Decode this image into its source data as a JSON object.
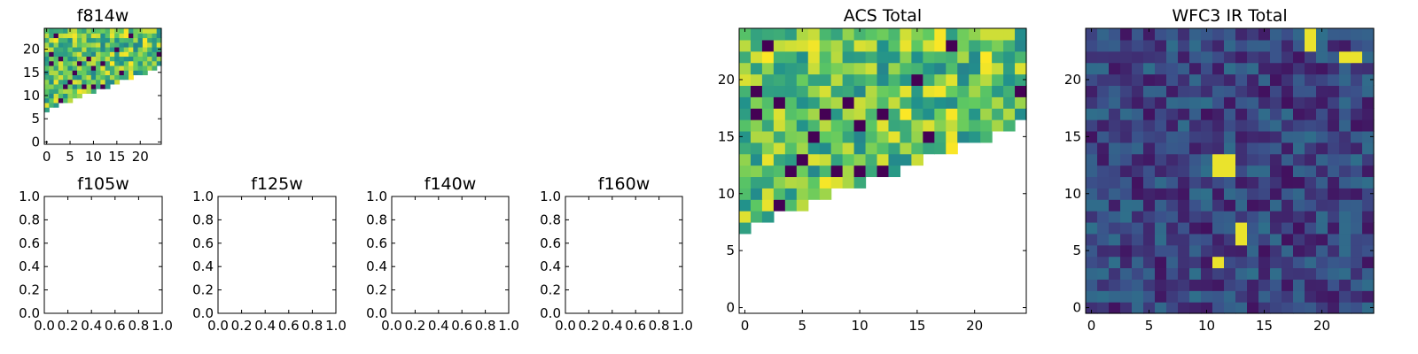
{
  "chart_data": [
    {
      "type": "heatmap",
      "title": "f814w",
      "x_ticks": [
        0,
        5,
        10,
        15,
        20
      ],
      "y_ticks": [
        0,
        5,
        10,
        15,
        20
      ],
      "xlim": [
        -0.5,
        24.5
      ],
      "ylim": [
        -0.5,
        24.5
      ],
      "grid_size": 25,
      "colormap": "viridis",
      "seed": 814,
      "coverage": "upper-left triangular footprint (empty below y = 7 + 0.38x)"
    },
    {
      "type": "empty",
      "title": "f105w",
      "x_ticks": [
        "0.0",
        "0.2",
        "0.4",
        "0.6",
        "0.8",
        "1.0"
      ],
      "y_ticks": [
        "0.0",
        "0.2",
        "0.4",
        "0.6",
        "0.8",
        "1.0"
      ],
      "xlim": [
        0,
        1
      ],
      "ylim": [
        0,
        1
      ]
    },
    {
      "type": "empty",
      "title": "f125w",
      "x_ticks": [
        "0.0",
        "0.2",
        "0.4",
        "0.6",
        "0.8",
        "1.0"
      ],
      "y_ticks": [
        "0.0",
        "0.2",
        "0.4",
        "0.6",
        "0.8",
        "1.0"
      ],
      "xlim": [
        0,
        1
      ],
      "ylim": [
        0,
        1
      ]
    },
    {
      "type": "empty",
      "title": "f140w",
      "x_ticks": [
        "0.0",
        "0.2",
        "0.4",
        "0.6",
        "0.8",
        "1.0"
      ],
      "y_ticks": [
        "0.0",
        "0.2",
        "0.4",
        "0.6",
        "0.8",
        "1.0"
      ],
      "xlim": [
        0,
        1
      ],
      "ylim": [
        0,
        1
      ]
    },
    {
      "type": "empty",
      "title": "f160w",
      "x_ticks": [
        "0.0",
        "0.2",
        "0.4",
        "0.6",
        "0.8",
        "1.0"
      ],
      "y_ticks": [
        "0.0",
        "0.2",
        "0.4",
        "0.6",
        "0.8",
        "1.0"
      ],
      "xlim": [
        0,
        1
      ],
      "ylim": [
        0,
        1
      ]
    },
    {
      "type": "heatmap",
      "title": "ACS Total",
      "x_ticks": [
        0,
        5,
        10,
        15,
        20
      ],
      "y_ticks": [
        0,
        5,
        10,
        15,
        20
      ],
      "xlim": [
        -0.5,
        24.5
      ],
      "ylim": [
        -0.5,
        24.5
      ],
      "grid_size": 25,
      "colormap": "viridis",
      "seed": 814,
      "coverage": "upper-left triangular footprint (empty below y = 7 + 0.38x)"
    },
    {
      "type": "heatmap",
      "title": "WFC3 IR Total",
      "x_ticks": [
        0,
        5,
        10,
        15,
        20
      ],
      "y_ticks": [
        0,
        5,
        10,
        15,
        20
      ],
      "xlim": [
        -0.5,
        24.5
      ],
      "ylim": [
        -0.5,
        24.5
      ],
      "grid_size": 25,
      "colormap": "viridis",
      "seed": 160,
      "coverage": "full",
      "bright_pixels": [
        [
          19,
          24
        ],
        [
          19,
          23
        ],
        [
          23,
          22
        ],
        [
          22,
          22
        ],
        [
          11,
          13
        ],
        [
          12,
          13
        ],
        [
          11,
          12
        ],
        [
          12,
          12
        ],
        [
          13,
          7
        ],
        [
          13,
          6
        ],
        [
          11,
          4
        ]
      ]
    }
  ],
  "colors": {
    "viridis_dark": "#440154",
    "viridis_blue": "#3b528b",
    "viridis_teal": "#21918c",
    "viridis_green": "#5ec962",
    "viridis_yellow": "#fde725"
  }
}
